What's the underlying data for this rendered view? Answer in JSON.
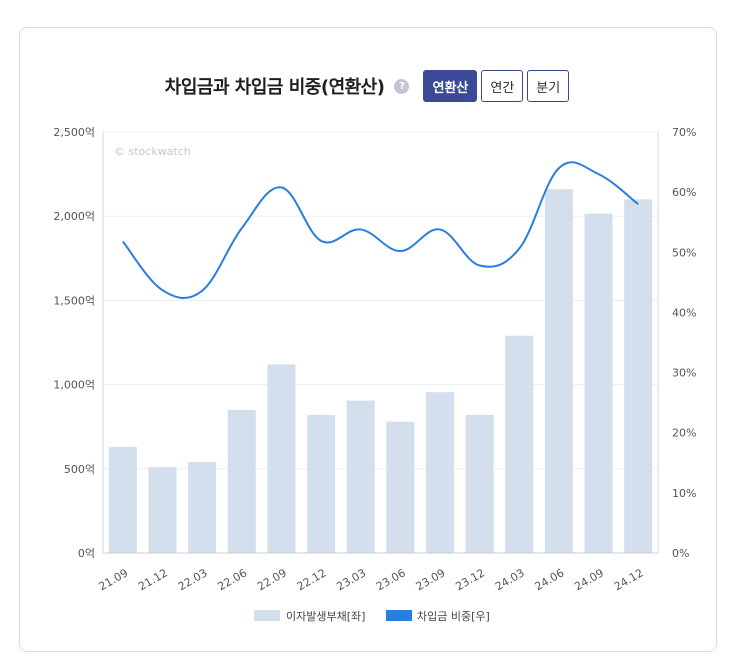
{
  "header": {
    "title": "차입금과 차입금 비중(연환산)",
    "help_symbol": "?",
    "tabs": [
      {
        "label": "연환산",
        "active": true
      },
      {
        "label": "연간",
        "active": false
      },
      {
        "label": "분기",
        "active": false
      }
    ]
  },
  "watermark": "© stockwatch",
  "colors": {
    "bar": "#d3dfec",
    "line": "#2a7de1",
    "accent": "#3a4a98"
  },
  "chart_data": {
    "type": "bar",
    "categories": [
      "21.09",
      "21.12",
      "22.03",
      "22.06",
      "22.09",
      "22.12",
      "23.03",
      "23.06",
      "23.09",
      "23.12",
      "24.03",
      "24.06",
      "24.09",
      "24.12"
    ],
    "left_axis": {
      "ticks": [
        "0억",
        "500억",
        "1,000억",
        "1,500억",
        "2,000억",
        "2,500억"
      ],
      "ylim": [
        0,
        2500
      ]
    },
    "right_axis": {
      "ticks": [
        "0%",
        "10%",
        "20%",
        "30%",
        "40%",
        "50%",
        "60%",
        "70%"
      ],
      "ylim": [
        0,
        70
      ]
    },
    "series": [
      {
        "name": "이자발생부채[좌]",
        "type": "bar",
        "axis": "left",
        "values": [
          630,
          510,
          540,
          850,
          1120,
          820,
          905,
          780,
          955,
          820,
          1290,
          2160,
          2015,
          2100
        ]
      },
      {
        "name": "차입금 비중[우]",
        "type": "line",
        "axis": "right",
        "values": [
          51.8,
          43.7,
          43.6,
          54.0,
          60.8,
          51.9,
          53.8,
          50.2,
          53.8,
          47.8,
          50.6,
          64.0,
          63.0,
          58.0
        ]
      }
    ],
    "grid": true,
    "legend": "bottom-center"
  }
}
